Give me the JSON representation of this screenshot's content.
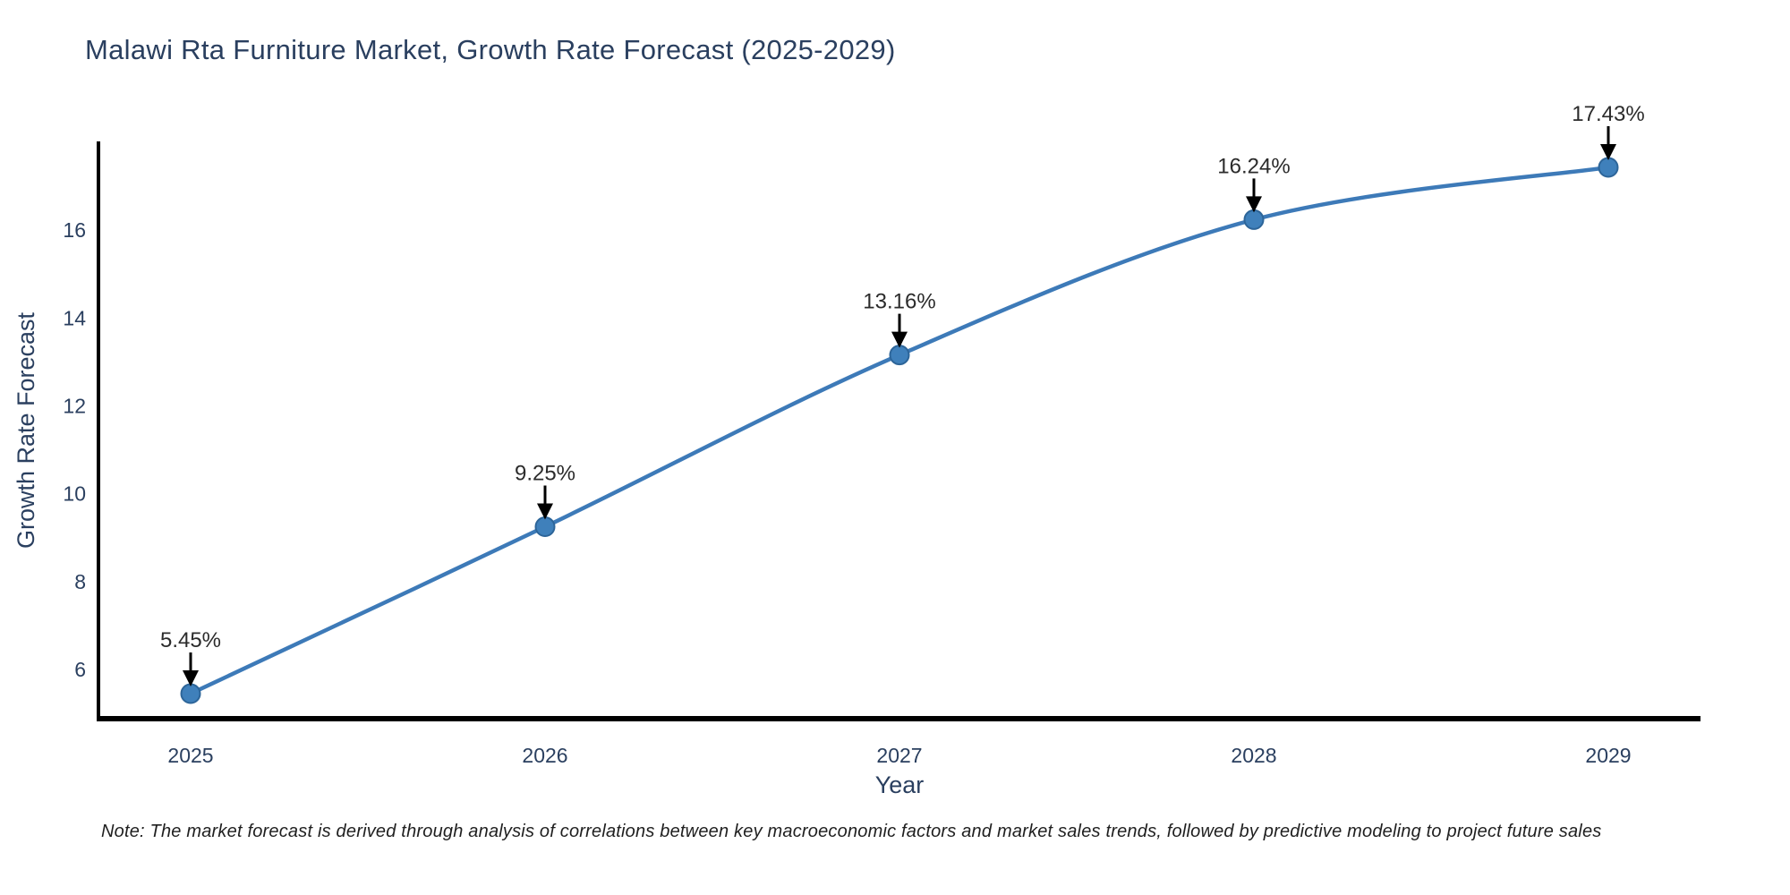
{
  "title": "Malawi Rta Furniture Market, Growth Rate Forecast (2025-2029)",
  "note": "Note: The market forecast is derived through analysis of correlations between key macroeconomic factors and market sales trends, followed by predictive modeling to project future sales",
  "chart_data": {
    "type": "line",
    "title": "Malawi Rta Furniture Market, Growth Rate Forecast (2025-2029)",
    "x": [
      2025,
      2026,
      2027,
      2028,
      2029
    ],
    "values": [
      5.45,
      9.25,
      13.16,
      16.24,
      17.43
    ],
    "point_labels": [
      "5.45%",
      "9.25%",
      "13.16%",
      "16.24%",
      "17.43%"
    ],
    "xlabel": "Year",
    "ylabel": "Growth Rate Forecast",
    "xticks": [
      "2025",
      "2026",
      "2027",
      "2028",
      "2029"
    ],
    "yticks": [
      6,
      8,
      10,
      12,
      14,
      16
    ],
    "ylim": [
      4.88,
      17.98
    ],
    "line_shape": "spline",
    "grid": false,
    "legend_position": "none",
    "colors": {
      "line": "#3d7ab8",
      "marker_fill": "#3f80bb",
      "marker_edge": "#2d6599",
      "axis": "#000000",
      "tick_text": "#2a3f5f",
      "axis_title_text": "#2a3f5f",
      "annotation_text": "#2b2b2b",
      "annotation_arrow": "#000000",
      "background": "#ffffff"
    }
  }
}
